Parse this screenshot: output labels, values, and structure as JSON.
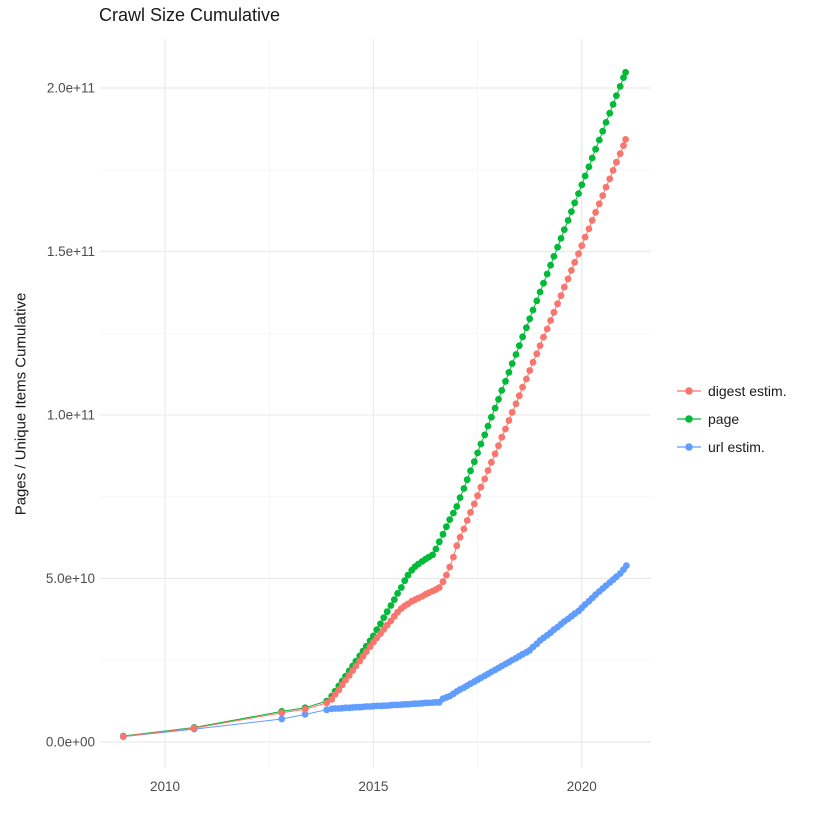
{
  "chart_data": {
    "type": "line",
    "title": "Crawl Size Cumulative",
    "xlabel": "",
    "ylabel": "Pages / Unique Items Cumulative",
    "value_unit": "1e9",
    "grid": "major+minor",
    "legend_position": "right",
    "x_domain": [
      2008.44,
      2021.66
    ],
    "y_domain_e9": [
      -8,
      215
    ],
    "x_ticks": [
      {
        "value": 2010,
        "label": "2010"
      },
      {
        "value": 2015,
        "label": "2015"
      },
      {
        "value": 2020,
        "label": "2020"
      }
    ],
    "x_minor": [
      2012.5,
      2017.5
    ],
    "y_ticks": [
      {
        "value": 0,
        "label": "0.0e+00"
      },
      {
        "value": 50,
        "label": "5.0e+10"
      },
      {
        "value": 100,
        "label": "1.0e+11"
      },
      {
        "value": 150,
        "label": "1.5e+11"
      },
      {
        "value": 200,
        "label": "2.0e+11"
      }
    ],
    "y_minor_e9": [
      25,
      75,
      125,
      175
    ],
    "series": [
      {
        "name": "digest estim.",
        "color": "#F8766D",
        "points": [
          [
            2009.0,
            1.7
          ],
          [
            2010.7,
            4.2
          ],
          [
            2012.8,
            8.9
          ],
          [
            2013.36,
            10.0
          ],
          [
            2013.88,
            11.9
          ],
          [
            2014.0,
            13.0
          ],
          [
            2014.08,
            14.5
          ],
          [
            2014.17,
            15.9
          ],
          [
            2014.25,
            17.4
          ],
          [
            2014.33,
            18.9
          ],
          [
            2014.42,
            20.3
          ],
          [
            2014.5,
            21.8
          ],
          [
            2014.58,
            23.2
          ],
          [
            2014.67,
            24.7
          ],
          [
            2014.75,
            26.2
          ],
          [
            2014.83,
            27.6
          ],
          [
            2014.92,
            29.1
          ],
          [
            2015.0,
            30.5
          ],
          [
            2015.08,
            31.8
          ],
          [
            2015.17,
            33.1
          ],
          [
            2015.25,
            34.4
          ],
          [
            2015.33,
            35.7
          ],
          [
            2015.42,
            37.0
          ],
          [
            2015.5,
            38.4
          ],
          [
            2015.58,
            39.7
          ],
          [
            2015.67,
            40.8
          ],
          [
            2015.75,
            41.6
          ],
          [
            2015.83,
            42.2
          ],
          [
            2015.92,
            43.0
          ],
          [
            2016.0,
            43.5
          ],
          [
            2016.08,
            44.0
          ],
          [
            2016.17,
            44.5
          ],
          [
            2016.25,
            45.1
          ],
          [
            2016.33,
            45.6
          ],
          [
            2016.42,
            46.1
          ],
          [
            2016.5,
            46.6
          ],
          [
            2016.58,
            47.2
          ],
          [
            2016.67,
            49.0
          ],
          [
            2016.75,
            51.0
          ],
          [
            2016.83,
            53.5
          ],
          [
            2016.92,
            56.5
          ],
          [
            2017.0,
            60.0
          ],
          [
            2017.08,
            62.6
          ],
          [
            2017.17,
            65.1
          ],
          [
            2017.25,
            67.7
          ],
          [
            2017.33,
            70.2
          ],
          [
            2017.42,
            72.8
          ],
          [
            2017.5,
            75.3
          ],
          [
            2017.58,
            77.9
          ],
          [
            2017.67,
            80.4
          ],
          [
            2017.75,
            83.0
          ],
          [
            2017.83,
            85.5
          ],
          [
            2017.92,
            88.1
          ],
          [
            2018.0,
            90.6
          ],
          [
            2018.08,
            93.2
          ],
          [
            2018.17,
            95.7
          ],
          [
            2018.25,
            98.3
          ],
          [
            2018.33,
            100.8
          ],
          [
            2018.42,
            103.4
          ],
          [
            2018.5,
            105.9
          ],
          [
            2018.58,
            108.5
          ],
          [
            2018.67,
            111.0
          ],
          [
            2018.75,
            113.6
          ],
          [
            2018.83,
            116.1
          ],
          [
            2018.92,
            118.7
          ],
          [
            2019.0,
            121.2
          ],
          [
            2019.08,
            123.8
          ],
          [
            2019.17,
            126.3
          ],
          [
            2019.25,
            128.9
          ],
          [
            2019.33,
            131.4
          ],
          [
            2019.42,
            134.0
          ],
          [
            2019.5,
            136.5
          ],
          [
            2019.58,
            139.1
          ],
          [
            2019.67,
            141.6
          ],
          [
            2019.75,
            144.2
          ],
          [
            2019.83,
            146.7
          ],
          [
            2019.92,
            149.3
          ],
          [
            2020.0,
            151.8
          ],
          [
            2020.08,
            154.4
          ],
          [
            2020.17,
            156.9
          ],
          [
            2020.25,
            159.5
          ],
          [
            2020.33,
            162.0
          ],
          [
            2020.42,
            164.6
          ],
          [
            2020.5,
            167.1
          ],
          [
            2020.58,
            169.7
          ],
          [
            2020.67,
            172.2
          ],
          [
            2020.75,
            174.8
          ],
          [
            2020.83,
            177.3
          ],
          [
            2020.92,
            179.9
          ],
          [
            2021.0,
            182.4
          ],
          [
            2021.05,
            184.3
          ]
        ]
      },
      {
        "name": "page",
        "color": "#00BA38",
        "points": [
          [
            2009.0,
            1.8
          ],
          [
            2010.7,
            4.4
          ],
          [
            2012.8,
            9.3
          ],
          [
            2013.36,
            10.4
          ],
          [
            2013.88,
            12.5
          ],
          [
            2014.0,
            14.0
          ],
          [
            2014.08,
            15.5
          ],
          [
            2014.17,
            17.1
          ],
          [
            2014.25,
            18.6
          ],
          [
            2014.33,
            20.1
          ],
          [
            2014.42,
            21.7
          ],
          [
            2014.5,
            23.2
          ],
          [
            2014.58,
            24.7
          ],
          [
            2014.67,
            26.3
          ],
          [
            2014.75,
            27.8
          ],
          [
            2014.83,
            29.3
          ],
          [
            2014.92,
            30.9
          ],
          [
            2015.0,
            32.4
          ],
          [
            2015.08,
            34.3
          ],
          [
            2015.17,
            36.1
          ],
          [
            2015.25,
            38.0
          ],
          [
            2015.33,
            39.8
          ],
          [
            2015.42,
            41.7
          ],
          [
            2015.5,
            43.5
          ],
          [
            2015.58,
            45.4
          ],
          [
            2015.67,
            47.2
          ],
          [
            2015.75,
            49.3
          ],
          [
            2015.83,
            51.0
          ],
          [
            2015.92,
            52.5
          ],
          [
            2016.0,
            53.6
          ],
          [
            2016.08,
            54.4
          ],
          [
            2016.17,
            55.2
          ],
          [
            2016.25,
            55.9
          ],
          [
            2016.33,
            56.5
          ],
          [
            2016.42,
            57.2
          ],
          [
            2016.5,
            59.0
          ],
          [
            2016.58,
            61.2
          ],
          [
            2016.67,
            63.5
          ],
          [
            2016.75,
            65.8
          ],
          [
            2016.83,
            68.0
          ],
          [
            2016.92,
            70.0
          ],
          [
            2017.0,
            72.0
          ],
          [
            2017.08,
            74.7
          ],
          [
            2017.17,
            77.5
          ],
          [
            2017.25,
            80.2
          ],
          [
            2017.33,
            82.9
          ],
          [
            2017.42,
            85.7
          ],
          [
            2017.5,
            88.4
          ],
          [
            2017.58,
            91.1
          ],
          [
            2017.67,
            93.9
          ],
          [
            2017.75,
            96.6
          ],
          [
            2017.83,
            99.3
          ],
          [
            2017.92,
            102.1
          ],
          [
            2018.0,
            104.8
          ],
          [
            2018.08,
            107.5
          ],
          [
            2018.17,
            110.3
          ],
          [
            2018.25,
            113.0
          ],
          [
            2018.33,
            115.7
          ],
          [
            2018.42,
            118.5
          ],
          [
            2018.5,
            121.2
          ],
          [
            2018.58,
            123.9
          ],
          [
            2018.67,
            126.7
          ],
          [
            2018.75,
            129.4
          ],
          [
            2018.83,
            132.1
          ],
          [
            2018.92,
            134.9
          ],
          [
            2019.0,
            137.6
          ],
          [
            2019.08,
            140.3
          ],
          [
            2019.17,
            143.1
          ],
          [
            2019.25,
            145.8
          ],
          [
            2019.33,
            148.5
          ],
          [
            2019.42,
            151.3
          ],
          [
            2019.5,
            154.0
          ],
          [
            2019.58,
            156.7
          ],
          [
            2019.67,
            159.5
          ],
          [
            2019.75,
            162.2
          ],
          [
            2019.83,
            164.9
          ],
          [
            2019.92,
            167.7
          ],
          [
            2020.0,
            170.4
          ],
          [
            2020.08,
            173.1
          ],
          [
            2020.17,
            175.9
          ],
          [
            2020.25,
            178.6
          ],
          [
            2020.33,
            181.3
          ],
          [
            2020.42,
            184.1
          ],
          [
            2020.5,
            186.8
          ],
          [
            2020.58,
            189.5
          ],
          [
            2020.67,
            192.3
          ],
          [
            2020.75,
            195.0
          ],
          [
            2020.83,
            197.7
          ],
          [
            2020.92,
            200.5
          ],
          [
            2021.0,
            203.2
          ],
          [
            2021.05,
            204.8
          ]
        ]
      },
      {
        "name": "url estim.",
        "color": "#619CFF",
        "points": [
          [
            2009.0,
            1.6
          ],
          [
            2010.7,
            3.9
          ],
          [
            2012.8,
            7.0
          ],
          [
            2013.36,
            8.4
          ],
          [
            2013.88,
            9.8
          ],
          [
            2014.0,
            10.1
          ],
          [
            2014.08,
            10.2
          ],
          [
            2014.17,
            10.2
          ],
          [
            2014.25,
            10.3
          ],
          [
            2014.33,
            10.4
          ],
          [
            2014.42,
            10.4
          ],
          [
            2014.5,
            10.5
          ],
          [
            2014.58,
            10.6
          ],
          [
            2014.67,
            10.6
          ],
          [
            2014.75,
            10.7
          ],
          [
            2014.83,
            10.8
          ],
          [
            2014.92,
            10.8
          ],
          [
            2015.0,
            10.9
          ],
          [
            2015.08,
            11.0
          ],
          [
            2015.17,
            11.0
          ],
          [
            2015.25,
            11.1
          ],
          [
            2015.33,
            11.1
          ],
          [
            2015.42,
            11.2
          ],
          [
            2015.5,
            11.3
          ],
          [
            2015.58,
            11.3
          ],
          [
            2015.67,
            11.4
          ],
          [
            2015.75,
            11.5
          ],
          [
            2015.83,
            11.5
          ],
          [
            2015.92,
            11.6
          ],
          [
            2016.0,
            11.7
          ],
          [
            2016.08,
            11.7
          ],
          [
            2016.17,
            11.8
          ],
          [
            2016.25,
            11.9
          ],
          [
            2016.33,
            11.9
          ],
          [
            2016.42,
            12.0
          ],
          [
            2016.5,
            12.1
          ],
          [
            2016.58,
            12.1
          ],
          [
            2016.67,
            13.2
          ],
          [
            2016.75,
            13.6
          ],
          [
            2016.83,
            14.0
          ],
          [
            2016.92,
            14.7
          ],
          [
            2017.0,
            15.4
          ],
          [
            2017.08,
            16.0
          ],
          [
            2017.17,
            16.6
          ],
          [
            2017.25,
            17.2
          ],
          [
            2017.33,
            17.8
          ],
          [
            2017.42,
            18.4
          ],
          [
            2017.5,
            19.0
          ],
          [
            2017.58,
            19.6
          ],
          [
            2017.67,
            20.2
          ],
          [
            2017.75,
            20.8
          ],
          [
            2017.83,
            21.4
          ],
          [
            2017.92,
            22.0
          ],
          [
            2018.0,
            22.6
          ],
          [
            2018.08,
            23.2
          ],
          [
            2018.17,
            23.8
          ],
          [
            2018.25,
            24.4
          ],
          [
            2018.33,
            25.0
          ],
          [
            2018.42,
            25.6
          ],
          [
            2018.5,
            26.2
          ],
          [
            2018.58,
            26.8
          ],
          [
            2018.67,
            27.4
          ],
          [
            2018.75,
            28.0
          ],
          [
            2018.83,
            29.0
          ],
          [
            2018.92,
            30.0
          ],
          [
            2019.0,
            31.0
          ],
          [
            2019.08,
            31.8
          ],
          [
            2019.17,
            32.6
          ],
          [
            2019.25,
            33.4
          ],
          [
            2019.33,
            34.3
          ],
          [
            2019.42,
            35.1
          ],
          [
            2019.5,
            36.0
          ],
          [
            2019.58,
            36.8
          ],
          [
            2019.67,
            37.6
          ],
          [
            2019.75,
            38.4
          ],
          [
            2019.83,
            39.2
          ],
          [
            2019.92,
            40.0
          ],
          [
            2020.0,
            41.0
          ],
          [
            2020.08,
            42.0
          ],
          [
            2020.17,
            43.0
          ],
          [
            2020.25,
            44.0
          ],
          [
            2020.33,
            45.0
          ],
          [
            2020.42,
            46.0
          ],
          [
            2020.5,
            46.9
          ],
          [
            2020.58,
            47.8
          ],
          [
            2020.67,
            48.7
          ],
          [
            2020.75,
            49.6
          ],
          [
            2020.83,
            50.5
          ],
          [
            2020.92,
            51.5
          ],
          [
            2021.0,
            52.7
          ],
          [
            2021.07,
            53.9
          ]
        ]
      }
    ]
  },
  "legend": {
    "items": [
      {
        "label": "digest estim."
      },
      {
        "label": "page"
      },
      {
        "label": "url estim."
      }
    ]
  }
}
